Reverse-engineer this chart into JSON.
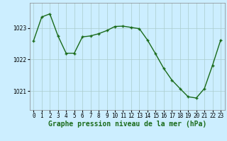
{
  "x": [
    0,
    1,
    2,
    3,
    4,
    5,
    6,
    7,
    8,
    9,
    10,
    11,
    12,
    13,
    14,
    15,
    16,
    17,
    18,
    19,
    20,
    21,
    22,
    23
  ],
  "y": [
    1022.6,
    1023.35,
    1023.45,
    1022.75,
    1022.2,
    1022.2,
    1022.72,
    1022.75,
    1022.82,
    1022.92,
    1023.05,
    1023.06,
    1023.02,
    1022.98,
    1022.62,
    1022.18,
    1021.72,
    1021.35,
    1021.08,
    1020.82,
    1020.78,
    1021.08,
    1021.82,
    1022.62
  ],
  "line_color": "#1a6b1a",
  "marker": "+",
  "marker_size": 3,
  "marker_color": "#1a6b1a",
  "bg_color": "#cceeff",
  "grid_color": "#aacccc",
  "xlabel": "Graphe pression niveau de la mer (hPa)",
  "xlabel_fontsize": 7,
  "xlabel_color": "#1a6b1a",
  "xlabel_bold": true,
  "yticks": [
    1021,
    1022,
    1023
  ],
  "ylim": [
    1020.4,
    1023.8
  ],
  "xlim": [
    -0.5,
    23.5
  ],
  "xtick_labels": [
    "0",
    "1",
    "2",
    "3",
    "4",
    "5",
    "6",
    "7",
    "8",
    "9",
    "10",
    "11",
    "12",
    "13",
    "14",
    "15",
    "16",
    "17",
    "18",
    "19",
    "20",
    "21",
    "22",
    "23"
  ],
  "tick_fontsize": 5.5,
  "line_width": 1.0
}
